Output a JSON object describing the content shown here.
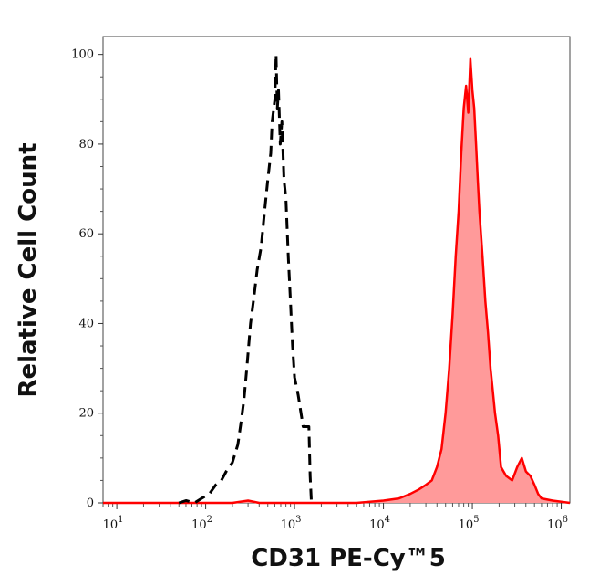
{
  "chart_data": {
    "type": "histogram",
    "xlabel": "CD31 PE-Cy™5",
    "ylabel": "Relative Cell Count",
    "x_scale": "log",
    "xlim": [
      7,
      1250000
    ],
    "ylim": [
      0,
      104
    ],
    "x_ticks": [
      {
        "value": 10,
        "label": "10",
        "exp": "1"
      },
      {
        "value": 100,
        "label": "10",
        "exp": "2"
      },
      {
        "value": 1000,
        "label": "10",
        "exp": "3"
      },
      {
        "value": 10000,
        "label": "10",
        "exp": "4"
      },
      {
        "value": 100000,
        "label": "10",
        "exp": "5"
      },
      {
        "value": 1000000,
        "label": "10",
        "exp": "6"
      }
    ],
    "y_ticks": [
      {
        "value": 0,
        "label": "0"
      },
      {
        "value": 20,
        "label": "20"
      },
      {
        "value": 40,
        "label": "40"
      },
      {
        "value": 60,
        "label": "60"
      },
      {
        "value": 80,
        "label": "80"
      },
      {
        "value": 100,
        "label": "100"
      }
    ],
    "series": [
      {
        "style": "dashed",
        "color": "#000000",
        "points": [
          [
            50,
            0
          ],
          [
            60,
            0.5
          ],
          [
            75,
            0
          ],
          [
            90,
            1
          ],
          [
            110,
            2
          ],
          [
            130,
            4
          ],
          [
            150,
            5
          ],
          [
            170,
            7
          ],
          [
            200,
            9
          ],
          [
            230,
            13
          ],
          [
            250,
            18
          ],
          [
            270,
            23
          ],
          [
            290,
            30
          ],
          [
            320,
            40
          ],
          [
            350,
            46
          ],
          [
            380,
            52
          ],
          [
            420,
            57
          ],
          [
            460,
            65
          ],
          [
            500,
            72
          ],
          [
            540,
            78
          ],
          [
            560,
            85
          ],
          [
            600,
            90
          ],
          [
            620,
            100
          ],
          [
            640,
            88
          ],
          [
            660,
            92
          ],
          [
            690,
            80
          ],
          [
            720,
            85
          ],
          [
            760,
            72
          ],
          [
            800,
            68
          ],
          [
            850,
            55
          ],
          [
            900,
            45
          ],
          [
            950,
            35
          ],
          [
            1000,
            28
          ],
          [
            1100,
            24
          ],
          [
            1250,
            17
          ],
          [
            1450,
            17
          ],
          [
            1500,
            6
          ],
          [
            1550,
            0
          ]
        ]
      },
      {
        "style": "solid-filled",
        "color": "#ff0000",
        "fill": "#ff9a9a",
        "points": [
          [
            7,
            0
          ],
          [
            200,
            0
          ],
          [
            300,
            0.5
          ],
          [
            400,
            0
          ],
          [
            1000,
            0
          ],
          [
            5000,
            0
          ],
          [
            10000,
            0.5
          ],
          [
            15000,
            1
          ],
          [
            20000,
            2
          ],
          [
            25000,
            3
          ],
          [
            30000,
            4
          ],
          [
            35000,
            5
          ],
          [
            40000,
            8
          ],
          [
            45000,
            12
          ],
          [
            50000,
            20
          ],
          [
            55000,
            30
          ],
          [
            60000,
            42
          ],
          [
            65000,
            55
          ],
          [
            70000,
            65
          ],
          [
            75000,
            78
          ],
          [
            80000,
            88
          ],
          [
            85000,
            93
          ],
          [
            90000,
            87
          ],
          [
            95000,
            99
          ],
          [
            100000,
            92
          ],
          [
            105000,
            88
          ],
          [
            110000,
            80
          ],
          [
            115000,
            72
          ],
          [
            120000,
            65
          ],
          [
            130000,
            55
          ],
          [
            140000,
            45
          ],
          [
            150000,
            38
          ],
          [
            160000,
            30
          ],
          [
            170000,
            25
          ],
          [
            180000,
            20
          ],
          [
            195000,
            15
          ],
          [
            210000,
            8
          ],
          [
            240000,
            6
          ],
          [
            280000,
            5
          ],
          [
            320000,
            8
          ],
          [
            360000,
            10
          ],
          [
            400000,
            7
          ],
          [
            450000,
            6
          ],
          [
            500000,
            4
          ],
          [
            550000,
            2
          ],
          [
            600000,
            1
          ],
          [
            800000,
            0.5
          ],
          [
            1250000,
            0
          ]
        ]
      }
    ]
  }
}
